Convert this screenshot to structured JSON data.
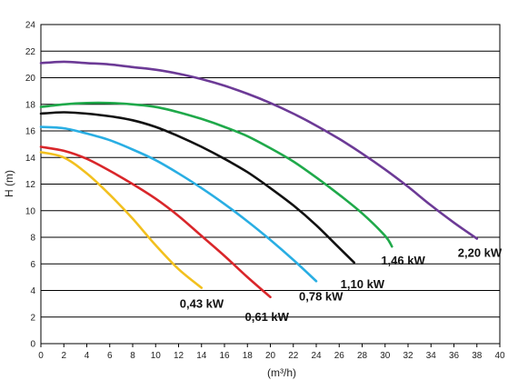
{
  "chart_data": {
    "type": "line",
    "title": "",
    "xlabel": "(m³/h)",
    "ylabel": "H (m)",
    "xlim": [
      0,
      40
    ],
    "ylim": [
      0,
      24
    ],
    "xticks": [
      0,
      2,
      4,
      6,
      8,
      10,
      12,
      14,
      16,
      18,
      20,
      22,
      24,
      26,
      28,
      30,
      32,
      34,
      36,
      38,
      40
    ],
    "yticks": [
      0,
      2,
      4,
      6,
      8,
      10,
      12,
      14,
      16,
      18,
      20,
      22,
      24
    ],
    "grid": "horizontal",
    "legend": "inline labels at curve ends",
    "series": [
      {
        "name": "0,43 kW",
        "color": "#f2c01e",
        "x": [
          0,
          2,
          4,
          6,
          8,
          10,
          12,
          14
        ],
        "y": [
          14.4,
          14.0,
          12.8,
          11.2,
          9.4,
          7.4,
          5.6,
          4.2
        ]
      },
      {
        "name": "0,61 kW",
        "color": "#d9262a",
        "x": [
          0,
          2,
          4,
          6,
          8,
          10,
          12,
          14,
          16,
          18,
          20
        ],
        "y": [
          14.8,
          14.5,
          13.9,
          13.0,
          12.0,
          10.9,
          9.6,
          8.1,
          6.6,
          5.0,
          3.5
        ]
      },
      {
        "name": "0,78 kW",
        "color": "#29aee3",
        "x": [
          0,
          2,
          4,
          6,
          8,
          10,
          12,
          14,
          16,
          18,
          20,
          22,
          24
        ],
        "y": [
          16.3,
          16.2,
          15.8,
          15.3,
          14.6,
          13.8,
          12.8,
          11.7,
          10.5,
          9.2,
          7.8,
          6.3,
          4.7
        ]
      },
      {
        "name": "1,10 kW",
        "color": "#111111",
        "x": [
          0,
          2,
          4,
          6,
          8,
          10,
          12,
          14,
          16,
          18,
          20,
          22,
          24,
          26,
          27.3
        ],
        "y": [
          17.3,
          17.4,
          17.3,
          17.1,
          16.8,
          16.3,
          15.6,
          14.8,
          13.9,
          12.9,
          11.7,
          10.4,
          8.9,
          7.2,
          6.1
        ]
      },
      {
        "name": "1,46 kW",
        "color": "#1fa94a",
        "x": [
          0,
          2,
          4,
          6,
          8,
          10,
          12,
          14,
          16,
          18,
          20,
          22,
          24,
          26,
          28,
          30,
          30.6
        ],
        "y": [
          17.8,
          18.0,
          18.1,
          18.1,
          18.0,
          17.8,
          17.4,
          16.9,
          16.3,
          15.6,
          14.7,
          13.7,
          12.5,
          11.2,
          9.8,
          8.1,
          7.3
        ]
      },
      {
        "name": "2,20 kW",
        "color": "#6c3a96",
        "x": [
          0,
          2,
          4,
          6,
          8,
          10,
          12,
          14,
          16,
          18,
          20,
          22,
          24,
          26,
          28,
          30,
          32,
          34,
          36,
          38
        ],
        "y": [
          21.1,
          21.2,
          21.1,
          21.0,
          20.8,
          20.6,
          20.3,
          19.9,
          19.4,
          18.8,
          18.1,
          17.3,
          16.4,
          15.4,
          14.3,
          13.1,
          11.8,
          10.4,
          9.1,
          7.9
        ]
      }
    ]
  }
}
